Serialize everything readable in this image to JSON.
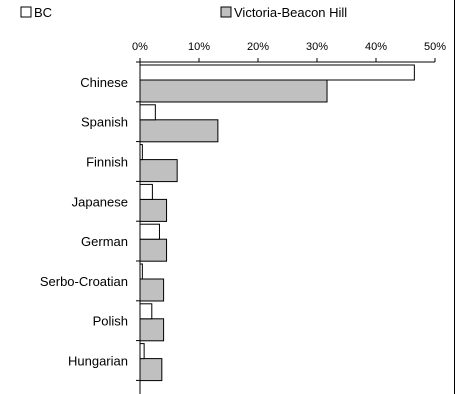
{
  "chart_data": {
    "type": "bar",
    "orientation": "horizontal",
    "categories": [
      "Chinese",
      "Spanish",
      "Finnish",
      "Japanese",
      "German",
      "Serbo-Croatian",
      "Polish",
      "Hungarian"
    ],
    "series": [
      {
        "name": "BC",
        "color": "#ffffff",
        "values": [
          46.5,
          2.6,
          0.4,
          2.1,
          3.3,
          0.4,
          2.0,
          0.7
        ]
      },
      {
        "name": "Victoria-Beacon Hill",
        "color": "#c0c0c0",
        "values": [
          31.7,
          13.2,
          6.3,
          4.5,
          4.5,
          4.0,
          4.0,
          3.7
        ]
      }
    ],
    "xlim": [
      0,
      50
    ],
    "x_ticks": [
      "0%",
      "10%",
      "20%",
      "30%",
      "40%",
      "50%"
    ],
    "legend_position": "top",
    "grid": false
  }
}
